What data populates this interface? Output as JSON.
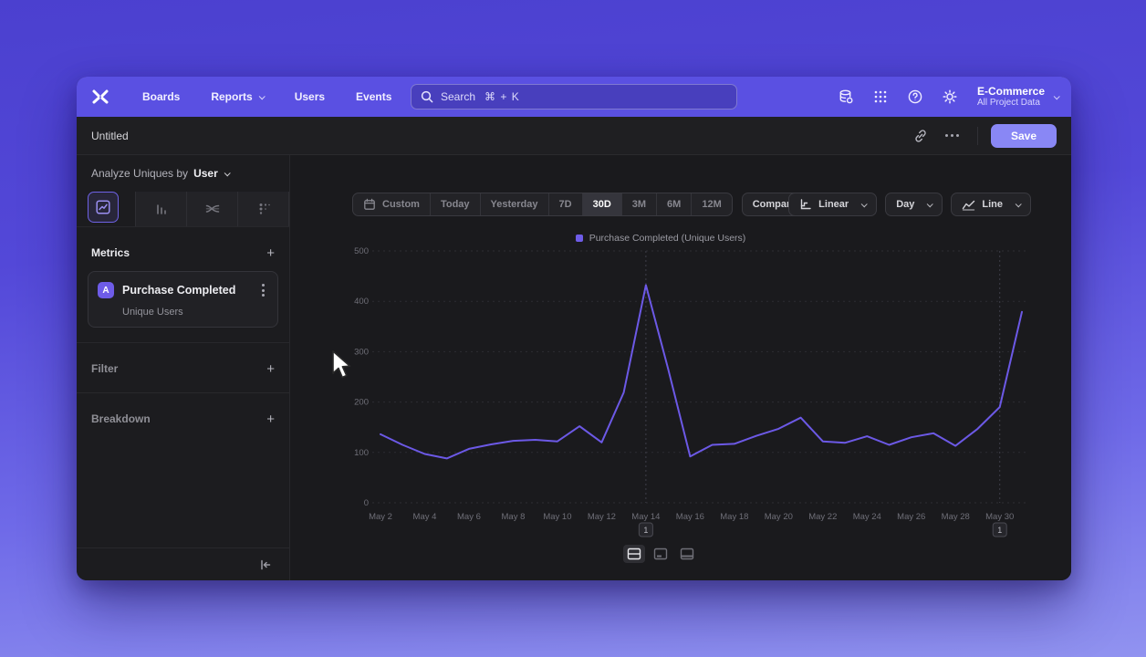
{
  "nav": {
    "items": [
      {
        "label": "Boards",
        "has_chevron": false
      },
      {
        "label": "Reports",
        "has_chevron": true
      },
      {
        "label": "Users",
        "has_chevron": false
      },
      {
        "label": "Events",
        "has_chevron": false
      }
    ],
    "search": {
      "placeholder": "Search",
      "shortcut": "⌘ + K"
    },
    "project": {
      "name": "E-Commerce",
      "scope": "All Project Data"
    }
  },
  "report_header": {
    "title": "Untitled",
    "save_label": "Save"
  },
  "sidebar": {
    "analyze": {
      "prefix": "Analyze Uniques by",
      "value": "User"
    },
    "metrics": {
      "title": "Metrics",
      "add": "+"
    },
    "metric_card": {
      "badge": "A",
      "title": "Purchase Completed",
      "subtitle": "Unique Users"
    },
    "filter": {
      "title": "Filter",
      "add": "+"
    },
    "breakdown": {
      "title": "Breakdown",
      "add": "+"
    }
  },
  "toolbar": {
    "ranges": [
      "Custom",
      "Today",
      "Yesterday",
      "7D",
      "30D",
      "3M",
      "6M",
      "12M"
    ],
    "active_range": "30D",
    "compare": "Compare",
    "scale": "Linear",
    "interval": "Day",
    "chart_type": "Line"
  },
  "chart_data": {
    "type": "line",
    "legend_label": "Purchase Completed (Unique Users)",
    "line_color": "#6c59e6",
    "ylim": [
      0,
      500
    ],
    "y_ticks": [
      0,
      100,
      200,
      300,
      400,
      500
    ],
    "x_tick_step": 2,
    "x": [
      "May 2",
      "May 3",
      "May 4",
      "May 5",
      "May 6",
      "May 7",
      "May 8",
      "May 9",
      "May 10",
      "May 11",
      "May 12",
      "May 13",
      "May 14",
      "May 15",
      "May 16",
      "May 17",
      "May 18",
      "May 19",
      "May 20",
      "May 21",
      "May 22",
      "May 23",
      "May 24",
      "May 25",
      "May 26",
      "May 27",
      "May 28",
      "May 29",
      "May 30",
      "May 31"
    ],
    "series": [
      {
        "name": "Purchase Completed (Unique Users)",
        "values": [
          136,
          115,
          97,
          88,
          107,
          116,
          123,
          125,
          122,
          152,
          120,
          219,
          432,
          267,
          92,
          115,
          117,
          133,
          147,
          169,
          122,
          119,
          132,
          115,
          130,
          138,
          113,
          147,
          190,
          379
        ]
      }
    ],
    "annotations": [
      {
        "index": 12,
        "date": "May 14",
        "label": "1"
      },
      {
        "index": 28,
        "date": "May 30",
        "label": "1"
      }
    ]
  },
  "colors": {
    "nav_bg": "#5a50e2",
    "accent": "#8987f5",
    "line": "#6c59e6",
    "window_bg": "#1b1b1e"
  }
}
